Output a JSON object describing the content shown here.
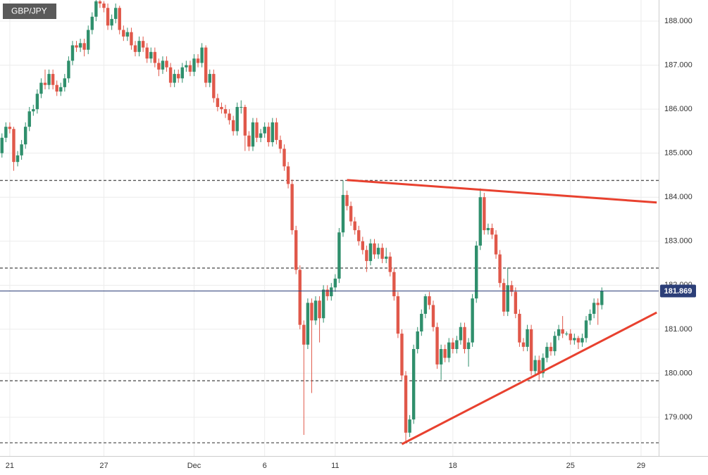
{
  "chart_data": {
    "type": "candlestick",
    "title": "GBP/JPY",
    "categories": [
      null,
      null,
      "21",
      null,
      null,
      null,
      null,
      null,
      null,
      null,
      null,
      null,
      null,
      null,
      null,
      null,
      null,
      null,
      null,
      null,
      null,
      null,
      null,
      null,
      null,
      null,
      "27",
      null,
      null,
      null,
      null,
      null,
      null,
      null,
      null,
      null,
      null,
      null,
      null,
      null,
      null,
      null,
      null,
      null,
      null,
      null,
      null,
      null,
      null,
      "Dec",
      null,
      null,
      null,
      null,
      null,
      null,
      null,
      null,
      null,
      null,
      null,
      null,
      null,
      null,
      null,
      null,
      null,
      "6",
      null,
      null,
      null,
      null,
      null,
      null,
      null,
      null,
      null,
      null,
      null,
      null,
      null,
      null,
      null,
      null,
      null,
      "11",
      null,
      null,
      null,
      null,
      null,
      null,
      null,
      null,
      null,
      null,
      null,
      null,
      null,
      null,
      null,
      null,
      null,
      null,
      null,
      null,
      null,
      null,
      null,
      null,
      null,
      null,
      null,
      null,
      null,
      "18",
      null,
      null,
      null,
      null,
      null,
      null,
      null,
      null,
      null,
      null,
      null,
      null,
      null,
      null,
      null,
      null,
      null,
      null,
      null,
      null,
      null,
      null,
      null,
      null,
      null,
      null,
      null,
      null,
      null,
      "25",
      null,
      null,
      null,
      null,
      null,
      null,
      null,
      null,
      null,
      null,
      null,
      null,
      null,
      null,
      null,
      null,
      null,
      "29",
      null,
      null,
      null,
      null
    ],
    "ohlc": [
      [
        185.0,
        185.45,
        184.9,
        185.35
      ],
      [
        185.35,
        185.7,
        185.25,
        185.6
      ],
      [
        185.6,
        185.7,
        185.45,
        185.55
      ],
      [
        185.55,
        185.6,
        184.6,
        184.8
      ],
      [
        184.8,
        185.05,
        184.7,
        184.95
      ],
      [
        184.95,
        185.3,
        184.85,
        185.2
      ],
      [
        185.2,
        185.7,
        185.1,
        185.6
      ],
      [
        185.6,
        186.05,
        185.5,
        185.95
      ],
      [
        185.95,
        186.1,
        185.85,
        186.0
      ],
      [
        186.0,
        186.45,
        185.9,
        186.35
      ],
      [
        186.35,
        186.7,
        186.25,
        186.6
      ],
      [
        186.6,
        186.9,
        186.45,
        186.55
      ],
      [
        186.55,
        186.9,
        186.45,
        186.8
      ],
      [
        186.8,
        186.9,
        186.45,
        186.55
      ],
      [
        186.55,
        186.65,
        186.3,
        186.4
      ],
      [
        186.4,
        186.6,
        186.3,
        186.5
      ],
      [
        186.5,
        186.8,
        186.4,
        186.7
      ],
      [
        186.7,
        187.2,
        186.6,
        187.1
      ],
      [
        187.1,
        187.55,
        187.0,
        187.45
      ],
      [
        187.45,
        187.55,
        187.3,
        187.4
      ],
      [
        187.4,
        187.6,
        187.3,
        187.5
      ],
      [
        187.5,
        187.6,
        187.2,
        187.35
      ],
      [
        187.35,
        187.9,
        187.25,
        187.8
      ],
      [
        187.8,
        188.2,
        187.7,
        188.1
      ],
      [
        188.1,
        188.5,
        188.0,
        188.45
      ],
      [
        188.45,
        188.5,
        188.3,
        188.4
      ],
      [
        188.4,
        188.45,
        188.2,
        188.3
      ],
      [
        188.3,
        188.4,
        187.8,
        187.9
      ],
      [
        187.9,
        188.15,
        187.8,
        188.05
      ],
      [
        188.05,
        188.4,
        187.95,
        188.3
      ],
      [
        188.3,
        188.35,
        187.7,
        187.8
      ],
      [
        187.8,
        187.9,
        187.55,
        187.65
      ],
      [
        187.65,
        187.85,
        187.55,
        187.75
      ],
      [
        187.75,
        187.85,
        187.35,
        187.45
      ],
      [
        187.45,
        187.55,
        187.2,
        187.3
      ],
      [
        187.3,
        187.65,
        187.2,
        187.55
      ],
      [
        187.55,
        187.65,
        187.3,
        187.4
      ],
      [
        187.4,
        187.5,
        187.05,
        187.15
      ],
      [
        187.15,
        187.4,
        187.05,
        187.3
      ],
      [
        187.3,
        187.4,
        186.95,
        187.05
      ],
      [
        187.05,
        187.15,
        186.75,
        186.9
      ],
      [
        186.9,
        187.2,
        186.8,
        187.1
      ],
      [
        187.1,
        187.2,
        186.85,
        186.95
      ],
      [
        186.95,
        187.05,
        186.5,
        186.6
      ],
      [
        186.6,
        186.9,
        186.5,
        186.8
      ],
      [
        186.8,
        186.9,
        186.6,
        186.7
      ],
      [
        186.7,
        187.05,
        186.6,
        186.95
      ],
      [
        186.95,
        187.1,
        186.85,
        187.0
      ],
      [
        187.0,
        187.1,
        186.75,
        186.85
      ],
      [
        186.85,
        187.25,
        186.75,
        187.15
      ],
      [
        187.15,
        187.25,
        186.95,
        187.05
      ],
      [
        187.05,
        187.5,
        186.95,
        187.4
      ],
      [
        187.4,
        187.45,
        186.5,
        186.6
      ],
      [
        186.6,
        186.9,
        186.5,
        186.8
      ],
      [
        186.8,
        186.9,
        186.15,
        186.25
      ],
      [
        186.25,
        186.35,
        185.95,
        186.05
      ],
      [
        186.05,
        186.15,
        185.9,
        186.0
      ],
      [
        186.0,
        186.1,
        185.8,
        185.9
      ],
      [
        185.9,
        186.0,
        185.65,
        185.75
      ],
      [
        185.75,
        185.85,
        185.4,
        185.5
      ],
      [
        185.5,
        186.15,
        185.4,
        186.05
      ],
      [
        186.05,
        186.2,
        185.9,
        186.05
      ],
      [
        186.05,
        186.1,
        185.05,
        185.4
      ],
      [
        185.4,
        185.5,
        185.05,
        185.15
      ],
      [
        185.15,
        185.8,
        185.05,
        185.7
      ],
      [
        185.7,
        185.8,
        185.25,
        185.35
      ],
      [
        185.35,
        185.55,
        185.25,
        185.45
      ],
      [
        185.45,
        185.7,
        185.35,
        185.6
      ],
      [
        185.6,
        185.7,
        185.15,
        185.25
      ],
      [
        185.25,
        185.8,
        185.15,
        185.7
      ],
      [
        185.7,
        185.8,
        185.2,
        185.3
      ],
      [
        185.3,
        185.4,
        185.0,
        185.1
      ],
      [
        185.1,
        185.2,
        184.6,
        184.7
      ],
      [
        184.7,
        184.8,
        184.2,
        184.3
      ],
      [
        184.3,
        184.4,
        183.15,
        183.25
      ],
      [
        183.25,
        183.35,
        182.25,
        182.35
      ],
      [
        182.35,
        182.45,
        181.0,
        181.1
      ],
      [
        181.1,
        181.2,
        178.6,
        180.65
      ],
      [
        180.65,
        181.7,
        180.55,
        181.6
      ],
      [
        181.6,
        181.7,
        179.55,
        181.2
      ],
      [
        181.2,
        181.75,
        181.1,
        181.65
      ],
      [
        181.65,
        181.75,
        180.7,
        181.25
      ],
      [
        181.25,
        182.0,
        181.15,
        181.9
      ],
      [
        181.9,
        182.0,
        181.65,
        181.75
      ],
      [
        181.75,
        182.05,
        181.65,
        181.95
      ],
      [
        181.95,
        182.25,
        181.85,
        182.15
      ],
      [
        182.15,
        183.3,
        182.05,
        183.2
      ],
      [
        183.2,
        184.38,
        183.1,
        184.05
      ],
      [
        184.05,
        184.15,
        183.7,
        183.8
      ],
      [
        183.8,
        183.9,
        183.35,
        183.45
      ],
      [
        183.45,
        183.55,
        183.15,
        183.25
      ],
      [
        183.25,
        183.35,
        182.9,
        183.0
      ],
      [
        183.0,
        183.1,
        182.7,
        182.8
      ],
      [
        182.8,
        182.9,
        182.3,
        182.55
      ],
      [
        182.55,
        183.05,
        182.45,
        182.95
      ],
      [
        182.95,
        183.05,
        182.6,
        182.7
      ],
      [
        182.7,
        182.95,
        182.6,
        182.85
      ],
      [
        182.85,
        182.95,
        182.5,
        182.6
      ],
      [
        182.6,
        182.85,
        182.5,
        182.65
      ],
      [
        182.65,
        182.75,
        182.2,
        182.3
      ],
      [
        182.3,
        182.4,
        181.65,
        181.75
      ],
      [
        181.75,
        181.85,
        180.8,
        180.9
      ],
      [
        180.9,
        181.0,
        179.85,
        179.95
      ],
      [
        179.95,
        180.05,
        178.42,
        178.65
      ],
      [
        178.65,
        179.05,
        178.55,
        178.95
      ],
      [
        178.95,
        180.65,
        178.85,
        180.55
      ],
      [
        180.55,
        181.05,
        180.45,
        180.95
      ],
      [
        180.95,
        181.45,
        180.85,
        181.35
      ],
      [
        181.35,
        181.8,
        181.25,
        181.75
      ],
      [
        181.75,
        181.85,
        181.45,
        181.55
      ],
      [
        181.55,
        181.65,
        180.95,
        181.05
      ],
      [
        181.05,
        181.15,
        180.1,
        180.2
      ],
      [
        180.2,
        180.65,
        179.85,
        180.55
      ],
      [
        180.55,
        180.65,
        180.25,
        180.35
      ],
      [
        180.35,
        180.8,
        180.25,
        180.7
      ],
      [
        180.7,
        180.8,
        180.45,
        180.55
      ],
      [
        180.55,
        180.85,
        180.45,
        180.75
      ],
      [
        180.75,
        181.15,
        180.65,
        181.05
      ],
      [
        181.05,
        181.15,
        180.45,
        180.55
      ],
      [
        180.55,
        180.8,
        180.15,
        180.7
      ],
      [
        180.7,
        181.8,
        180.6,
        181.7
      ],
      [
        181.7,
        183.0,
        181.6,
        182.9
      ],
      [
        182.9,
        184.2,
        182.8,
        184.0
      ],
      [
        184.0,
        184.1,
        183.15,
        183.25
      ],
      [
        183.25,
        183.4,
        183.15,
        183.3
      ],
      [
        183.3,
        183.4,
        183.05,
        183.15
      ],
      [
        183.15,
        183.25,
        182.6,
        182.7
      ],
      [
        182.7,
        182.8,
        181.95,
        182.05
      ],
      [
        182.05,
        182.15,
        181.3,
        181.4
      ],
      [
        181.4,
        182.4,
        181.3,
        182.0
      ],
      [
        182.0,
        182.1,
        181.75,
        181.85
      ],
      [
        181.85,
        181.95,
        181.25,
        181.35
      ],
      [
        181.35,
        181.45,
        180.6,
        180.7
      ],
      [
        180.7,
        180.8,
        180.5,
        180.6
      ],
      [
        180.6,
        181.1,
        180.5,
        181.0
      ],
      [
        181.0,
        181.1,
        179.95,
        180.05
      ],
      [
        180.05,
        180.4,
        179.95,
        180.3
      ],
      [
        180.3,
        180.4,
        179.85,
        180.0
      ],
      [
        180.0,
        180.45,
        179.9,
        180.35
      ],
      [
        180.35,
        180.7,
        180.25,
        180.6
      ],
      [
        180.6,
        180.7,
        180.4,
        180.5
      ],
      [
        180.5,
        180.95,
        180.4,
        180.85
      ],
      [
        180.85,
        181.1,
        180.75,
        181.0
      ],
      [
        181.0,
        181.3,
        180.8,
        180.9
      ],
      [
        180.9,
        180.95,
        180.85,
        180.9
      ],
      [
        180.9,
        181.0,
        180.65,
        180.75
      ],
      [
        180.75,
        180.9,
        180.65,
        180.8
      ],
      [
        180.8,
        180.85,
        180.55,
        180.7
      ],
      [
        180.7,
        180.9,
        180.6,
        180.8
      ],
      [
        180.8,
        181.3,
        180.7,
        181.2
      ],
      [
        181.2,
        181.45,
        181.1,
        181.35
      ],
      [
        181.35,
        181.7,
        181.25,
        181.6
      ],
      [
        181.6,
        181.7,
        181.1,
        181.55
      ],
      [
        181.55,
        181.95,
        181.45,
        181.869
      ],
      null,
      null,
      null,
      null,
      null,
      null,
      null,
      null,
      null,
      null,
      null,
      null,
      null,
      null
    ],
    "up_color": "#2f8f6c",
    "down_color": "#e0584a",
    "ylim": [
      178.12,
      188.48
    ],
    "yticks": [
      {
        "value": 179,
        "label": "179.000"
      },
      {
        "value": 180,
        "label": "180.000"
      },
      {
        "value": 181,
        "label": "181.000"
      },
      {
        "value": 182,
        "label": "182.000"
      },
      {
        "value": 183,
        "label": "183.000"
      },
      {
        "value": 184,
        "label": "184.000"
      },
      {
        "value": 185,
        "label": "185.000"
      },
      {
        "value": 186,
        "label": "186.000"
      },
      {
        "value": 187,
        "label": "187.000"
      },
      {
        "value": 188,
        "label": "188.000"
      }
    ],
    "grid": true,
    "last": 181.869,
    "last_color": "#2c3f78",
    "levels": [
      184.38,
      182.39,
      179.83,
      178.42
    ],
    "trendline_color": "#e8412f",
    "trendlines": [
      {
        "x": [
          88,
          167
        ],
        "y": [
          184.39,
          183.88
        ]
      },
      {
        "x": [
          102,
          167
        ],
        "y": [
          178.39,
          181.38
        ]
      }
    ]
  }
}
